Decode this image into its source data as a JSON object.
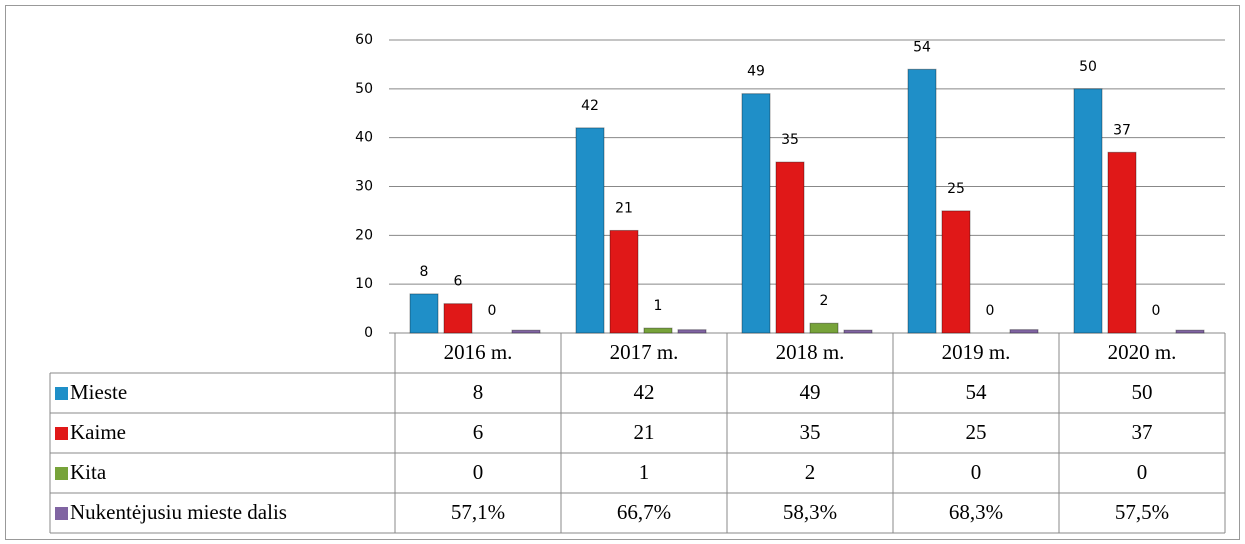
{
  "chart_data": {
    "type": "bar",
    "categories": [
      "2016 m.",
      "2017 m.",
      "2018 m.",
      "2019 m.",
      "2020 m."
    ],
    "series": [
      {
        "name": "Mieste",
        "color": "#1f8fc8",
        "values": [
          8,
          42,
          49,
          54,
          50
        ]
      },
      {
        "name": "Kaime",
        "color": "#e01818",
        "values": [
          6,
          21,
          35,
          25,
          37
        ]
      },
      {
        "name": "Kita",
        "color": "#77a33a",
        "values": [
          0,
          1,
          2,
          0,
          0
        ]
      },
      {
        "name": "Nukentėjusiu mieste dalis",
        "color": "#8064a2",
        "values": [
          0.571,
          0.667,
          0.583,
          0.683,
          0.575
        ],
        "value_labels": [
          "57,1%",
          "66,7%",
          "58,3%",
          "68,3%",
          "57,5%"
        ]
      }
    ],
    "ylim": [
      0,
      60
    ],
    "yticks": [
      0,
      10,
      20,
      30,
      40,
      50,
      60
    ],
    "grid": true
  }
}
